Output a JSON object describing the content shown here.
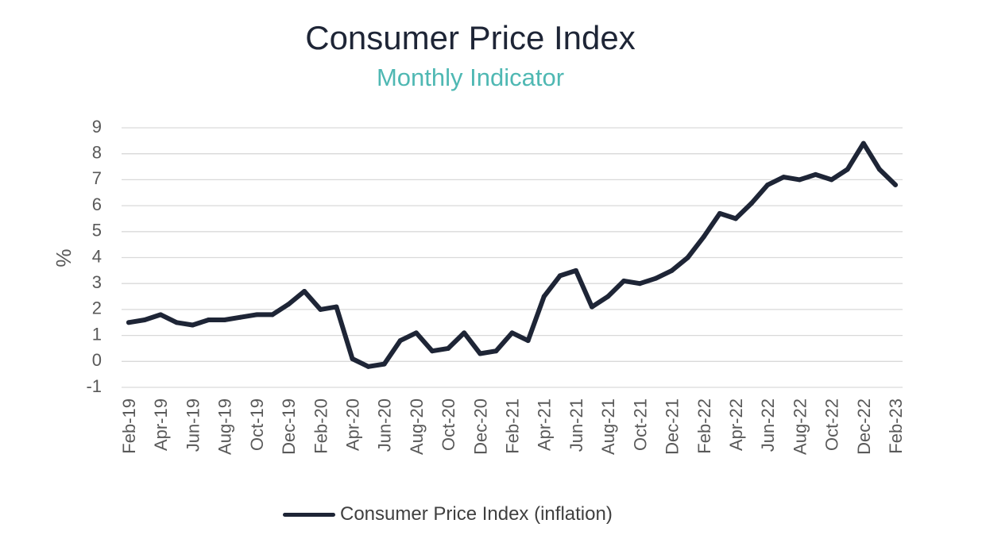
{
  "chart_data": {
    "type": "line",
    "title": "Consumer Price Index",
    "subtitle": "Monthly Indicator",
    "ylabel": "%",
    "xlabel": "",
    "ylim": [
      -1,
      9
    ],
    "yticks": [
      "9",
      "8",
      "7",
      "6",
      "5",
      "4",
      "3",
      "2",
      "1",
      "0",
      "-1"
    ],
    "grid": true,
    "legend_position": "bottom",
    "line_color": "#1e2536",
    "x": [
      "Feb-19",
      "Mar-19",
      "Apr-19",
      "May-19",
      "Jun-19",
      "Jul-19",
      "Aug-19",
      "Sep-19",
      "Oct-19",
      "Nov-19",
      "Dec-19",
      "Jan-20",
      "Feb-20",
      "Mar-20",
      "Apr-20",
      "May-20",
      "Jun-20",
      "Jul-20",
      "Aug-20",
      "Sep-20",
      "Oct-20",
      "Nov-20",
      "Dec-20",
      "Jan-21",
      "Feb-21",
      "Mar-21",
      "Apr-21",
      "May-21",
      "Jun-21",
      "Jul-21",
      "Aug-21",
      "Sep-21",
      "Oct-21",
      "Nov-21",
      "Dec-21",
      "Jan-22",
      "Feb-22",
      "Mar-22",
      "Apr-22",
      "May-22",
      "Jun-22",
      "Jul-22",
      "Aug-22",
      "Sep-22",
      "Oct-22",
      "Nov-22",
      "Dec-22",
      "Jan-23",
      "Feb-23"
    ],
    "xtick_labels": [
      "Feb-19",
      "Apr-19",
      "Jun-19",
      "Aug-19",
      "Oct-19",
      "Dec-19",
      "Feb-20",
      "Apr-20",
      "Jun-20",
      "Aug-20",
      "Oct-20",
      "Dec-20",
      "Feb-21",
      "Apr-21",
      "Jun-21",
      "Aug-21",
      "Oct-21",
      "Dec-21",
      "Feb-22",
      "Apr-22",
      "Jun-22",
      "Aug-22",
      "Oct-22",
      "Dec-22",
      "Feb-23"
    ],
    "series": [
      {
        "name": "Consumer Price Index (inflation)",
        "values": [
          1.5,
          1.6,
          1.8,
          1.5,
          1.4,
          1.6,
          1.6,
          1.7,
          1.8,
          1.8,
          2.2,
          2.7,
          2.0,
          2.1,
          0.1,
          -0.2,
          -0.1,
          0.8,
          1.1,
          0.4,
          0.5,
          1.1,
          0.3,
          0.4,
          1.1,
          0.8,
          2.5,
          3.3,
          3.5,
          2.1,
          2.5,
          3.1,
          3.0,
          3.2,
          3.5,
          4.0,
          4.8,
          5.7,
          5.5,
          6.1,
          6.8,
          7.1,
          7.0,
          7.2,
          7.0,
          7.4,
          8.4,
          7.4,
          6.8
        ]
      }
    ]
  }
}
